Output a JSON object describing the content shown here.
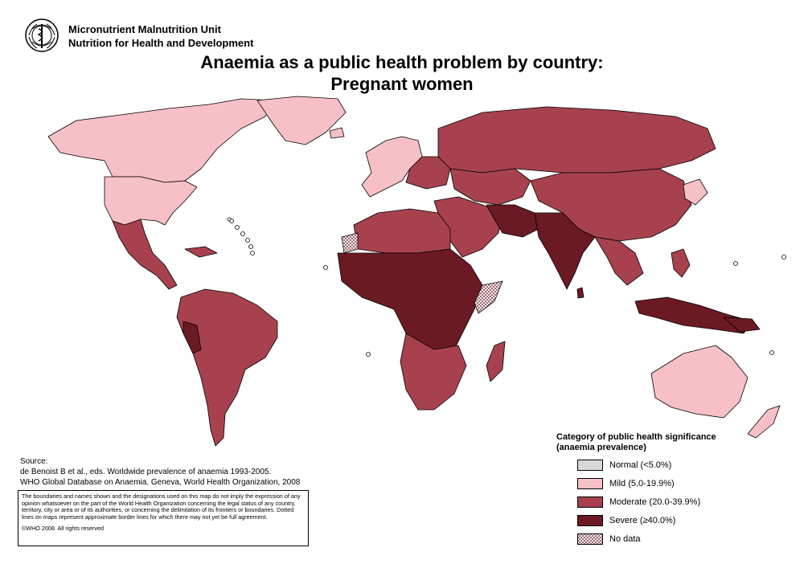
{
  "header": {
    "org_line1": "Micronutrient Malnutrition Unit",
    "org_line2": "Nutrition for Health and Development",
    "title_line1": "Anaemia as a public health problem by country:",
    "title_line2": "Pregnant women"
  },
  "source": {
    "label": "Source:",
    "line1": "de Benoist B et al., eds. Worldwide prevalence of anaemia 1993-2005.",
    "line2": "WHO Global Database on Anaemia. Geneva, World Health Organization, 2008"
  },
  "disclaimer": {
    "text": "The boundaries and names shown and the designations used on this map do not imply the expression of any opinion whatsoever on the part of the World Health Organization concerning the legal status of any country, territory, city or area or of its authorities, or concerning the delimitation of its frontiers or boundaries. Dotted lines on maps represent approximate border lines for which there may not yet be full agreement.",
    "copyright": "©WHO 2008. All rights reserved"
  },
  "legend": {
    "title_line1": "Category of public health significance",
    "title_line2": "(anaemia prevalence)",
    "items": [
      {
        "label": "Normal (<5.0%)",
        "color": "#d9d9d9"
      },
      {
        "label": "Mild (5.0-19.9%)",
        "color": "#f7c0c6"
      },
      {
        "label": "Moderate (20.0-39.9%)",
        "color": "#a8414e"
      },
      {
        "label": "Severe (≥40.0%)",
        "color": "#6b1a24"
      },
      {
        "label": "No data",
        "color": "hatched"
      }
    ]
  },
  "colors": {
    "mild": "#f7c0c6",
    "moderate": "#a8414e",
    "severe": "#6b1a24",
    "normal": "#d9d9d9",
    "border": "#000000"
  }
}
